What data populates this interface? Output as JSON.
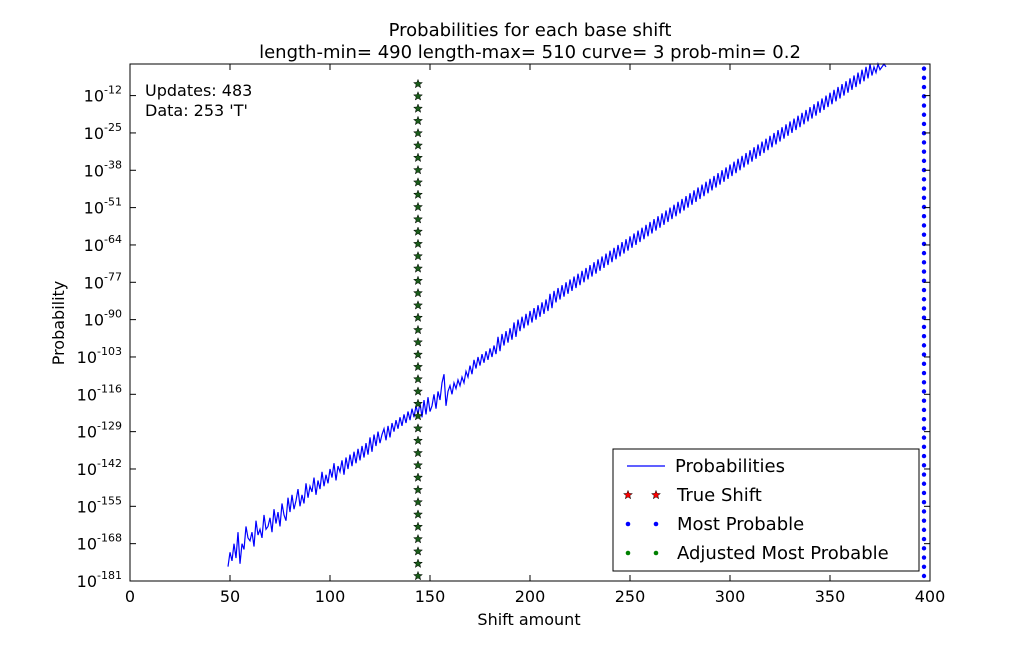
{
  "chart_data": {
    "type": "line",
    "title": "Probabilities for each base shift",
    "subtitle": "length-min= 490 length-max= 510 curve= 3 prob-min= 0.2",
    "xlabel": "Shift amount",
    "ylabel": "Probability",
    "xlim": [
      0,
      400
    ],
    "x_ticks": [
      0,
      50,
      100,
      150,
      200,
      250,
      300,
      350,
      400
    ],
    "y_log_exponent_lim": [
      -181,
      -1
    ],
    "y_ticks": [
      {
        "exp": -12,
        "base": "10",
        "sup": "-12"
      },
      {
        "exp": -25,
        "base": "10",
        "sup": "-25"
      },
      {
        "exp": -38,
        "base": "10",
        "sup": "-38"
      },
      {
        "exp": -51,
        "base": "10",
        "sup": "-51"
      },
      {
        "exp": -64,
        "base": "10",
        "sup": "-64"
      },
      {
        "exp": -77,
        "base": "10",
        "sup": "-77"
      },
      {
        "exp": -90,
        "base": "10",
        "sup": "-90"
      },
      {
        "exp": -103,
        "base": "10",
        "sup": "-103"
      },
      {
        "exp": -116,
        "base": "10",
        "sup": "-116"
      },
      {
        "exp": -129,
        "base": "10",
        "sup": "-129"
      },
      {
        "exp": -142,
        "base": "10",
        "sup": "-142"
      },
      {
        "exp": -155,
        "base": "10",
        "sup": "-155"
      },
      {
        "exp": -168,
        "base": "10",
        "sup": "-168"
      },
      {
        "exp": -181,
        "base": "10",
        "sup": "-181"
      }
    ],
    "annotations": [
      "Updates: 483",
      "Data: 253 'T'"
    ],
    "legend_position": "lower-right",
    "series": [
      {
        "name": "Probabilities",
        "style": "line",
        "color": "#0000ff",
        "x_start": 49,
        "x_step": 1,
        "log10_y": [
          -176,
          -171,
          -174,
          -168,
          -173,
          -164,
          -175,
          -168,
          -170,
          -162,
          -166,
          -167,
          -164,
          -169,
          -160,
          -165,
          -163,
          -166,
          -158,
          -163,
          -162,
          -159,
          -164,
          -156,
          -161,
          -157,
          -162,
          -154,
          -158,
          -160,
          -152,
          -157,
          -151,
          -156,
          -153,
          -149,
          -155,
          -151,
          -154,
          -147,
          -152,
          -148,
          -150,
          -145,
          -151,
          -146,
          -149,
          -143,
          -148,
          -144,
          -147,
          -142,
          -145,
          -140,
          -146,
          -141,
          -143,
          -139,
          -144,
          -138,
          -142,
          -137,
          -141,
          -136,
          -140,
          -135,
          -139,
          -134,
          -138,
          -133,
          -137,
          -131,
          -136,
          -130,
          -134,
          -129,
          -133,
          -130,
          -128,
          -132,
          -127,
          -131,
          -126,
          -129,
          -125,
          -128,
          -124,
          -127,
          -123,
          -126,
          -122,
          -125,
          -121,
          -124,
          -120,
          -123,
          -119,
          -124,
          -118,
          -123,
          -117,
          -122,
          -120,
          -116,
          -121,
          -115,
          -118,
          -112,
          -109,
          -120,
          -115,
          -113,
          -116,
          -112,
          -114,
          -111,
          -113,
          -110,
          -112,
          -108,
          -110,
          -106,
          -109,
          -104,
          -107,
          -103,
          -106,
          -102,
          -105,
          -101,
          -104,
          -100,
          -103,
          -99,
          -102,
          -96,
          -101,
          -95,
          -99,
          -94,
          -98,
          -93,
          -97,
          -91,
          -96,
          -90,
          -94,
          -89,
          -93,
          -88,
          -92,
          -87,
          -91,
          -86,
          -90,
          -85,
          -89,
          -84,
          -88,
          -83,
          -87,
          -81,
          -86,
          -80,
          -84,
          -79,
          -83,
          -78,
          -82,
          -77,
          -81,
          -76,
          -80,
          -75,
          -79,
          -74,
          -78,
          -73,
          -77,
          -72,
          -76,
          -71,
          -75,
          -70,
          -74,
          -69,
          -73,
          -68,
          -72,
          -67,
          -71,
          -66,
          -70,
          -65,
          -69,
          -64,
          -68,
          -63,
          -67,
          -62,
          -66,
          -61,
          -65,
          -60,
          -64,
          -59,
          -63,
          -58,
          -62,
          -57,
          -61,
          -56,
          -60,
          -55,
          -59,
          -54,
          -58,
          -53,
          -57,
          -52,
          -56,
          -51,
          -55,
          -50,
          -54,
          -49,
          -53,
          -48,
          -52,
          -47,
          -51,
          -46,
          -50,
          -45,
          -49,
          -44,
          -48,
          -43,
          -47,
          -42,
          -46,
          -41,
          -45,
          -40,
          -44,
          -39,
          -43,
          -38,
          -42,
          -37,
          -41,
          -36,
          -40,
          -35,
          -39,
          -34,
          -38,
          -33,
          -37,
          -32,
          -36,
          -31,
          -35,
          -30,
          -34,
          -29,
          -33,
          -28,
          -32,
          -27,
          -31,
          -26,
          -30,
          -25,
          -29,
          -24,
          -28,
          -23,
          -27,
          -22,
          -26,
          -21,
          -25,
          -20,
          -24,
          -19,
          -23,
          -18,
          -22,
          -17,
          -21,
          -16,
          -20,
          -15,
          -19,
          -14,
          -18,
          -13,
          -17,
          -12,
          -16,
          -11,
          -15,
          -10,
          -14,
          -9,
          -13,
          -8,
          -12,
          -7,
          -11,
          -6,
          -10,
          -5,
          -9,
          -4,
          -8,
          -3,
          -7,
          -2,
          -6,
          -1,
          -5,
          -2,
          -4,
          -1,
          -3,
          -2,
          -1,
          -2
        ]
      },
      {
        "name": "True Shift",
        "style": "marker",
        "marker": "star",
        "color": "#ff0000",
        "x": 144
      },
      {
        "name": "Most Probable",
        "style": "marker",
        "marker": "dot",
        "color": "#0000ff",
        "x": 397
      },
      {
        "name": "Adjusted Most Probable",
        "style": "marker",
        "marker": "dot",
        "color": "#008000",
        "x": 144
      }
    ]
  }
}
